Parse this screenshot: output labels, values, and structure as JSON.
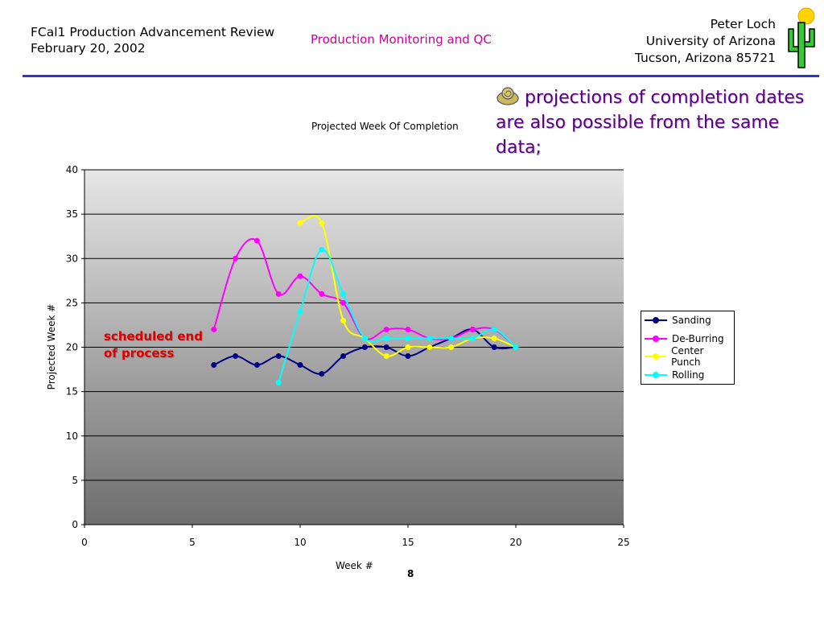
{
  "header": {
    "left_line1": "FCal1 Production Advancement Review",
    "left_line2": "February 20, 2002",
    "center": "Production Monitoring and QC",
    "right_line1": "Peter Loch",
    "right_line2": "University of Arizona",
    "right_line3": "Tucson, Arizona 85721"
  },
  "bullet_text": "projections of completion dates are also possible from the same data;",
  "annotation": {
    "line1": "scheduled end",
    "line2": "of process"
  },
  "page_number": "8",
  "colors": {
    "rule": "#3333cc",
    "header_center": "#cc0099",
    "bullet": "#5a0080",
    "annotation": "#dd0000"
  },
  "chart_data": {
    "type": "line",
    "title": "Projected Week Of Completion",
    "xlabel": "Week #",
    "ylabel": "Projected Week #",
    "xlim": [
      0,
      25
    ],
    "ylim": [
      0,
      40
    ],
    "xticks": [
      0,
      5,
      10,
      15,
      20,
      25
    ],
    "yticks": [
      0,
      5,
      10,
      15,
      20,
      25,
      30,
      35,
      40
    ],
    "grid": true,
    "legend_position": "right",
    "series": [
      {
        "name": "Sanding",
        "color": "#000080",
        "x": [
          6,
          7,
          8,
          9,
          10,
          11,
          12,
          13,
          14,
          15,
          16,
          17,
          18,
          19,
          20
        ],
        "y": [
          18,
          19,
          18,
          19,
          18,
          17,
          19,
          20,
          20,
          19,
          20,
          21,
          22,
          20,
          20
        ]
      },
      {
        "name": "De-Burring",
        "color": "#ff00ff",
        "x": [
          6,
          7,
          8,
          9,
          10,
          11,
          12,
          13,
          14,
          15,
          16,
          17,
          18,
          19,
          20
        ],
        "y": [
          22,
          30,
          32,
          26,
          28,
          26,
          25,
          21,
          22,
          22,
          21,
          21,
          22,
          22,
          20
        ]
      },
      {
        "name": "Center Punch",
        "color": "#ffff00",
        "x": [
          10,
          11,
          12,
          13,
          14,
          15,
          16,
          17,
          18,
          19,
          20
        ],
        "y": [
          34,
          34,
          23,
          21,
          19,
          20,
          20,
          20,
          21,
          21,
          20
        ]
      },
      {
        "name": "Rolling",
        "color": "#00ffff",
        "x": [
          9,
          10,
          11,
          12,
          13,
          14,
          15,
          16,
          17,
          18,
          19,
          20
        ],
        "y": [
          16,
          24,
          31,
          26,
          21,
          21,
          21,
          21,
          21,
          21,
          22,
          20
        ]
      }
    ]
  }
}
